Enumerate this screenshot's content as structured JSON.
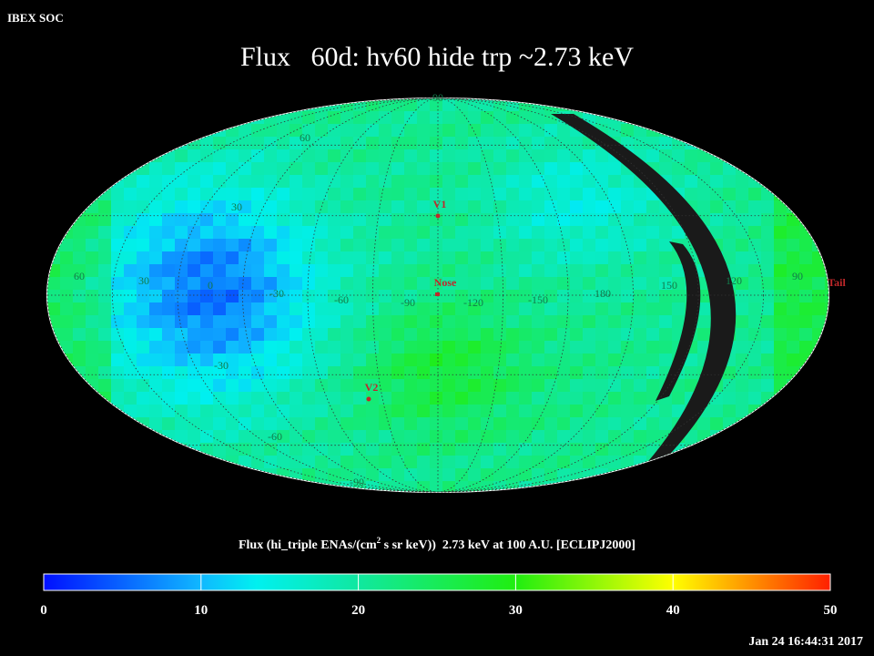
{
  "header": {
    "source": "IBEX SOC",
    "title": "Flux   60d: hv60 hide trp ~2.73 keV",
    "timestamp": "Jan 24 16:44:31 2017"
  },
  "map": {
    "latitude_labels": [
      "90",
      "60",
      "30",
      "-30",
      "-60",
      "-90"
    ],
    "longitude_labels": [
      "60",
      "30",
      "0",
      "-30",
      "-60",
      "-90",
      "-120",
      "-150",
      "180",
      "150",
      "120",
      "90"
    ],
    "markers": [
      "V1",
      "Nose",
      "V2",
      "Tail"
    ]
  },
  "colorbar": {
    "title_start": "Flux (hi_triple ENAs/(cm",
    "title_superscript": "2",
    "title_end": " s sr keV))  2.73 keV at 100 A.U. [ECLIPJ2000]",
    "lim": [
      0,
      50
    ],
    "ticks": [
      0,
      10,
      20,
      30,
      40,
      50
    ]
  }
}
